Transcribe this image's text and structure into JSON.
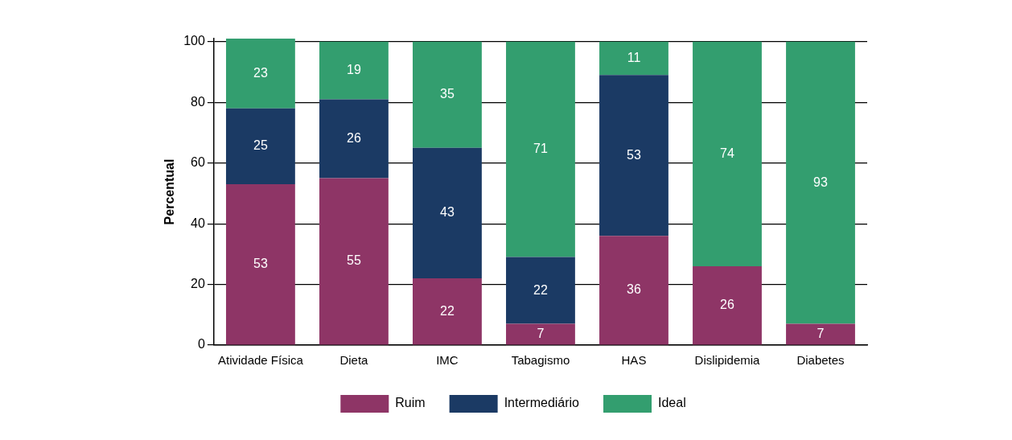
{
  "chart_data": {
    "type": "bar",
    "stacked": true,
    "ylabel": "Percentual",
    "categories": [
      "Atividade Física",
      "Dieta",
      "IMC",
      "Tabagismo",
      "HAS",
      "Dislipidemia",
      "Diabetes"
    ],
    "series": [
      {
        "name": "Ruim",
        "color": "#8e3566",
        "values": [
          53,
          55,
          22,
          7,
          36,
          26,
          7
        ]
      },
      {
        "name": "Intermediário",
        "color": "#1b3a64",
        "values": [
          25,
          26,
          43,
          22,
          53,
          null,
          null
        ]
      },
      {
        "name": "Ideal",
        "color": "#339e6f",
        "values": [
          23,
          19,
          35,
          71,
          11,
          74,
          93
        ]
      }
    ],
    "ylim": [
      0,
      101
    ],
    "yticks": [
      0,
      20,
      40,
      60,
      80,
      100
    ],
    "grid": "y",
    "legend": "bottom",
    "data_labels": true
  }
}
